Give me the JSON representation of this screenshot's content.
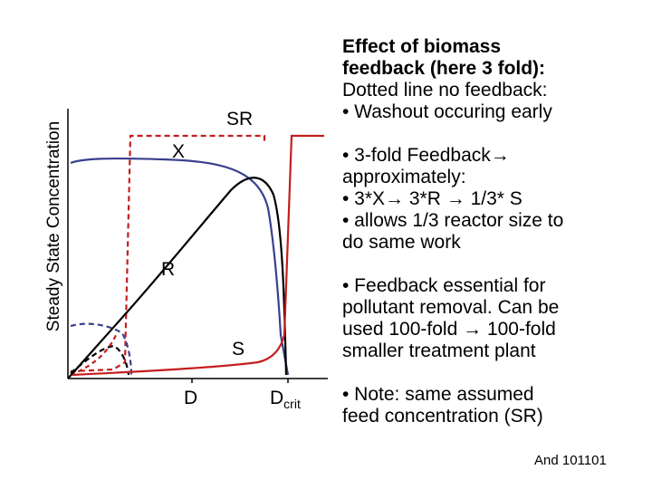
{
  "diagram": {
    "ylabel": "Steady State Concentration",
    "curve_labels": {
      "sr": "SR",
      "x": "X",
      "r": "R",
      "s": "S"
    },
    "axis_labels": {
      "d": "D",
      "dcrit_main": "D",
      "dcrit_sub": "crit"
    },
    "colors": {
      "sr_line": "#c41e1e",
      "x_line": "#3a3f8f",
      "r_line": "#000000",
      "s_line": "#c41e1e",
      "axes": "#000000"
    }
  },
  "notes": {
    "block1": {
      "line1": "Effect of biomass",
      "line2": "feedback (here 3 fold):",
      "line3": "Dotted line no feedback:",
      "line4": "• Washout occuring early"
    },
    "block2": {
      "line1": "• 3-fold Feedback",
      "line2": "approximately:",
      "line3a": "• 3*X",
      "line3b": " 3*R ",
      "line3c": " 1/3* S",
      "line4": "• allows 1/3 reactor size to",
      "line5": "do same work"
    },
    "block3": {
      "line1": "• Feedback essential for",
      "line2": "pollutant removal. Can be",
      "line3a": "used 100-fold ",
      "line3b": " 100-fold",
      "line4": "smaller treatment plant"
    },
    "block4": {
      "line1": "• Note: same assumed",
      "line2": "feed concentration (SR)"
    },
    "arrow_glyph": "→"
  },
  "footer": "And 101101"
}
